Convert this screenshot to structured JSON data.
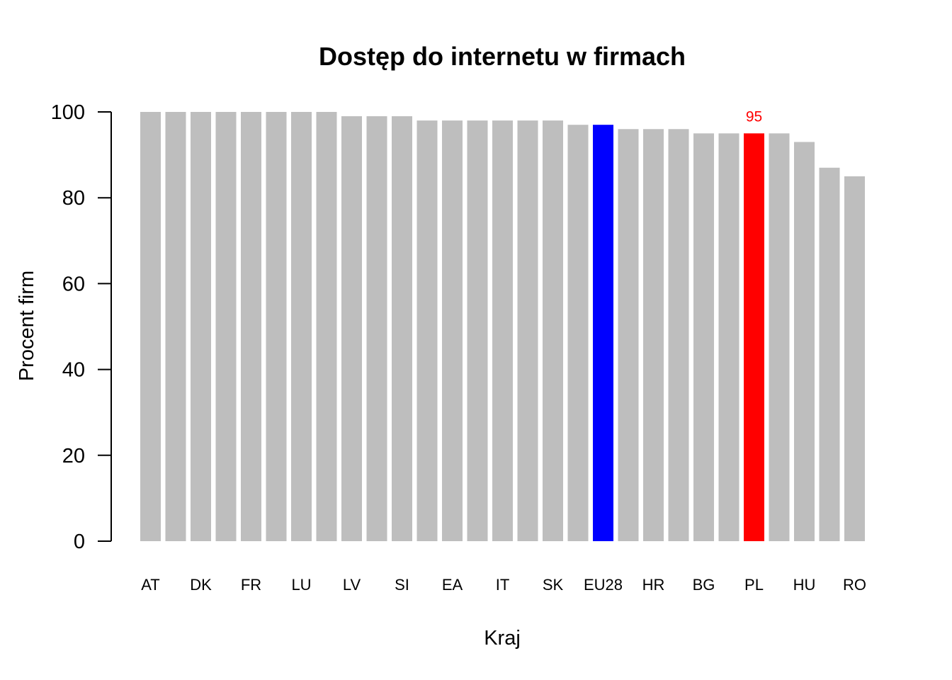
{
  "chart_data": {
    "type": "bar",
    "title": "Dostęp do internetu w firmach",
    "xlabel": "Kraj",
    "ylabel": "Procent firm",
    "ylim": [
      0,
      100
    ],
    "yticks": [
      0,
      20,
      40,
      60,
      80,
      100
    ],
    "grid": false,
    "categories": [
      "AT",
      "",
      "DK",
      "",
      "FR",
      "",
      "LU",
      "",
      "LV",
      "",
      "SI",
      "",
      "EA",
      "",
      "IT",
      "",
      "SK",
      "",
      "EU28",
      "",
      "HR",
      "",
      "BG",
      "",
      "PL",
      "",
      "HU",
      "",
      "RO"
    ],
    "values": [
      100,
      100,
      100,
      100,
      100,
      100,
      100,
      100,
      99,
      99,
      99,
      98,
      98,
      98,
      98,
      98,
      98,
      97,
      97,
      96,
      96,
      96,
      95,
      95,
      95,
      95,
      93,
      87,
      85
    ],
    "colors": {
      "default": "#bebebe",
      "EU28": "#0000ff",
      "PL": "#ff0000"
    },
    "data_labels": [
      {
        "category": "PL",
        "text": "95",
        "color": "#ff0000"
      }
    ]
  }
}
